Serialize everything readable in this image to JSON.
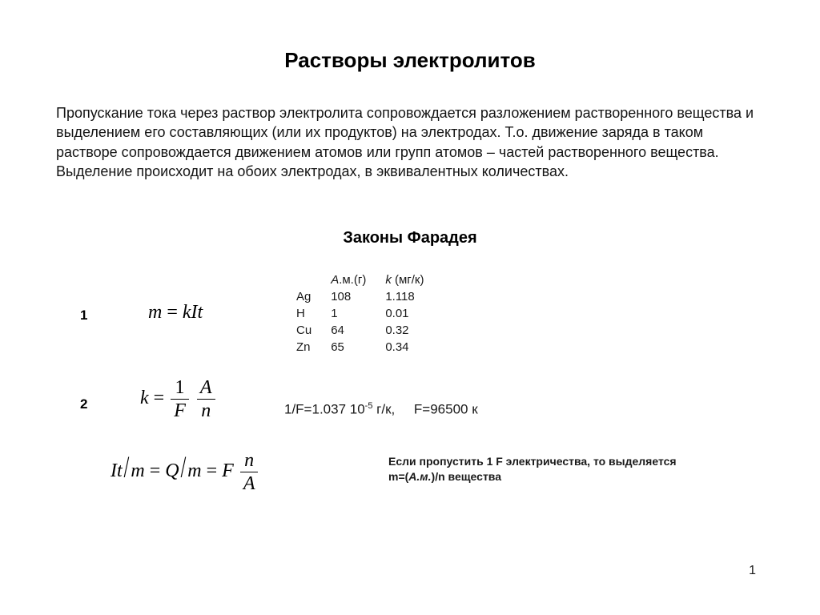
{
  "title": "Растворы электролитов",
  "intro": "Пропускание тока через раствор электролита сопровождается разложением растворенного вещества и выделением его составляющих (или их продуктов) на электродах. Т.о. движение заряда в таком растворе сопровождается движением атомов или групп атомов – частей растворенного вещества. Выделение происходит на обоих электродах, в эквивалентных количествах.",
  "subtitle": "Законы Фарадея",
  "numbers": {
    "one": "1",
    "two": "2"
  },
  "formula1": {
    "m": "m",
    "eq": "=",
    "k": "k",
    "I": "I",
    "t": "t"
  },
  "formula2": {
    "k": "k",
    "eq": "=",
    "frac1_num": "1",
    "frac1_den": "F",
    "frac2_num": "A",
    "frac2_den": "n"
  },
  "formula3": {
    "It": "It",
    "m": "m",
    "eq": "=",
    "Q": "Q",
    "F": "F",
    "frac_num": "n",
    "frac_den": "A"
  },
  "table": {
    "headers": {
      "col1": "",
      "col2_pre": "А",
      "col2_post": ".м.(г)",
      "col3_pre": "k",
      "col3_post": " (мг/к)"
    },
    "rows": [
      {
        "el": "Ag",
        "am": "108",
        "k": "1.118"
      },
      {
        "el": "H",
        "am": "1",
        "k": "0.01"
      },
      {
        "el": "Cu",
        "am": "64",
        "k": "0.32"
      },
      {
        "el": "Zn",
        "am": "65",
        "k": "0.34"
      }
    ]
  },
  "constants": {
    "prefix": "1/F=1.037 10",
    "exp": "-5",
    "suffix": " г/к,",
    "gap": "     ",
    "fval": "F=96500 к"
  },
  "note": {
    "line1": "Если пропустить 1 F электричества, то выделяется",
    "m": "m=(",
    "am": "А.м.",
    "rest": ")/n вещества"
  },
  "page_number": "1",
  "style": {
    "font_family": "Arial",
    "math_font": "Times New Roman",
    "text_color": "#000000",
    "bg_color": "#ffffff",
    "title_fontsize": 26,
    "body_fontsize": 18,
    "subtitle_fontsize": 20,
    "formula_fontsize": 24,
    "note_fontsize": 14,
    "table_fontsize": 15
  }
}
